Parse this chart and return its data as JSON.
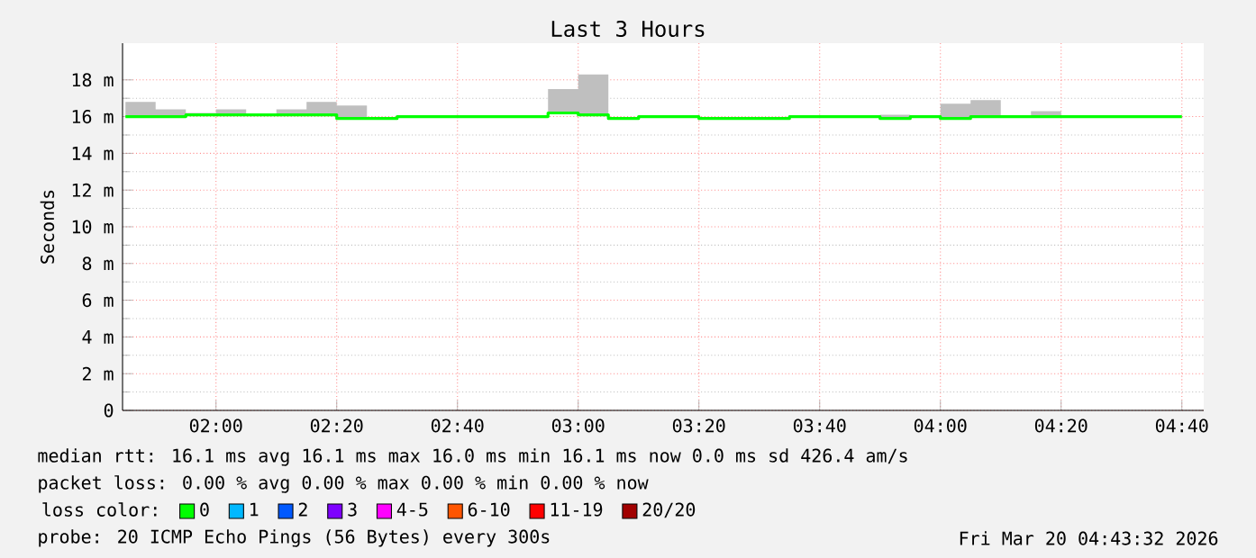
{
  "chart_data": {
    "type": "step",
    "title": "Last 3 Hours",
    "ylabel": "Seconds",
    "x": [
      1.75,
      1.8333,
      1.9167,
      2,
      2.0833,
      2.1667,
      2.25,
      2.3333,
      2.4167,
      2.5,
      2.5833,
      2.6667,
      2.75,
      2.8333,
      2.9167,
      3,
      3.0833,
      3.1667,
      3.25,
      3.3333,
      3.4167,
      3.5,
      3.5833,
      3.6667,
      3.75,
      3.8333,
      3.9167,
      4,
      4.0833,
      4.1667,
      4.25,
      4.3333,
      4.4167,
      4.5,
      4.5833,
      4.6667
    ],
    "series": [
      {
        "name": "0",
        "color": "#00ff00",
        "values": [
          16,
          16,
          16.1,
          16.1,
          16.1,
          16.1,
          16.1,
          15.9,
          15.9,
          16,
          16,
          16,
          16,
          16,
          16.2,
          16.1,
          15.9,
          16,
          16,
          15.9,
          15.9,
          15.9,
          16,
          16,
          16,
          15.9,
          16,
          15.9,
          16,
          16,
          16,
          16,
          16,
          16,
          16,
          16
        ],
        "lower": [
          16,
          16,
          16.1,
          16.1,
          16.1,
          16.1,
          16.1,
          15.9,
          15.9,
          16,
          16,
          16,
          16,
          16,
          16.2,
          16.1,
          15.9,
          16,
          16,
          15.9,
          15.9,
          15.9,
          16,
          16,
          16,
          15.9,
          16,
          15.9,
          16,
          16,
          16,
          16,
          16,
          16,
          16,
          16
        ],
        "upper": [
          16.8,
          16.4,
          16.2,
          16.4,
          16.1,
          16.4,
          16.8,
          16.6,
          15.9,
          16,
          16,
          16,
          16,
          16,
          17.5,
          18.3,
          15.9,
          16,
          16,
          15.9,
          15.9,
          15.9,
          16,
          16,
          16,
          16.1,
          16,
          16.7,
          16.9,
          16,
          16.3,
          16,
          16,
          16,
          16,
          16
        ]
      },
      {
        "name": "1",
        "color": "#00b8ff",
        "values": [
          null,
          null,
          null,
          null,
          null,
          null,
          null,
          null,
          null,
          null,
          null,
          null,
          null,
          null,
          null,
          null,
          null,
          null,
          null,
          null,
          null,
          null,
          null,
          null,
          null,
          null,
          null,
          null,
          null,
          null,
          null,
          null,
          null,
          null,
          null,
          null
        ]
      },
      {
        "name": "2",
        "color": "#0059ff",
        "values": [
          null,
          null,
          null,
          null,
          null,
          null,
          null,
          null,
          null,
          null,
          null,
          null,
          null,
          null,
          null,
          null,
          null,
          null,
          null,
          null,
          null,
          null,
          null,
          null,
          null,
          null,
          null,
          null,
          null,
          null,
          null,
          null,
          null,
          null,
          null,
          null
        ]
      },
      {
        "name": "3",
        "color": "#7e00ff",
        "values": [
          null,
          null,
          null,
          null,
          null,
          null,
          null,
          null,
          null,
          null,
          null,
          null,
          null,
          null,
          null,
          null,
          null,
          null,
          null,
          null,
          null,
          null,
          null,
          null,
          null,
          null,
          null,
          null,
          null,
          null,
          null,
          null,
          null,
          null,
          null,
          null
        ]
      },
      {
        "name": "4-5",
        "color": "#ff00ff",
        "values": [
          null,
          null,
          null,
          null,
          null,
          null,
          null,
          null,
          null,
          null,
          null,
          null,
          null,
          null,
          null,
          null,
          null,
          null,
          null,
          null,
          null,
          null,
          null,
          null,
          null,
          null,
          null,
          null,
          null,
          null,
          null,
          null,
          null,
          null,
          null,
          null
        ]
      },
      {
        "name": "6-10",
        "color": "#ff5500",
        "values": [
          null,
          null,
          null,
          null,
          null,
          null,
          null,
          null,
          null,
          null,
          null,
          null,
          null,
          null,
          null,
          null,
          null,
          null,
          null,
          null,
          null,
          null,
          null,
          null,
          null,
          null,
          null,
          null,
          null,
          null,
          null,
          null,
          null,
          null,
          null,
          null
        ]
      },
      {
        "name": "11-19",
        "color": "#ff0000",
        "values": [
          null,
          null,
          null,
          null,
          null,
          null,
          null,
          null,
          null,
          null,
          null,
          null,
          null,
          null,
          null,
          null,
          null,
          null,
          null,
          null,
          null,
          null,
          null,
          null,
          null,
          null,
          null,
          null,
          null,
          null,
          null,
          null,
          null,
          null,
          null,
          null
        ]
      },
      {
        "name": "20/20",
        "color": "#a10000",
        "values": [
          null,
          null,
          null,
          null,
          null,
          null,
          null,
          null,
          null,
          null,
          null,
          null,
          null,
          null,
          null,
          null,
          null,
          null,
          null,
          null,
          null,
          null,
          null,
          null,
          null,
          null,
          null,
          null,
          null,
          null,
          null,
          null,
          null,
          null,
          null,
          null
        ]
      }
    ],
    "legend_title": "loss color:",
    "legend": "bottom",
    "xlim": [
      1.742,
      4.727
    ],
    "xticks": [
      {
        "value": 2,
        "label": "02:00"
      },
      {
        "value": 2.3333,
        "label": "02:20"
      },
      {
        "value": 2.6667,
        "label": "02:40"
      },
      {
        "value": 3,
        "label": "03:00"
      },
      {
        "value": 3.3333,
        "label": "03:20"
      },
      {
        "value": 3.6667,
        "label": "03:40"
      },
      {
        "value": 4,
        "label": "04:00"
      },
      {
        "value": 4.3333,
        "label": "04:20"
      },
      {
        "value": 4.6667,
        "label": "04:40"
      }
    ],
    "ylim": [
      0,
      20
    ],
    "yticks": [
      0,
      {
        "value": 2,
        "label": "2 m"
      },
      {
        "value": 4,
        "label": "4 m"
      },
      {
        "value": 6,
        "label": "6 m"
      },
      {
        "value": 8,
        "label": "8 m"
      },
      {
        "value": 10,
        "label": "10 m"
      },
      {
        "value": 12,
        "label": "12 m"
      },
      {
        "value": 14,
        "label": "14 m"
      },
      {
        "value": 16,
        "label": "16 m"
      },
      {
        "value": 18,
        "label": "18 m"
      }
    ],
    "grid": true,
    "annotations": [
      "median rtt: 16.1 ms avg 16.1 ms max 16.0 ms min 16.1 ms now 0.0 ms sd 426.4 am/s",
      "packet loss: 0.00 % avg 0.00 % max 0.00 % min 0.00 % now",
      "probe: 20 ICMP Echo Pings (56 Bytes) every 300s",
      "Fri Mar 20 04:43:32 2026"
    ]
  }
}
